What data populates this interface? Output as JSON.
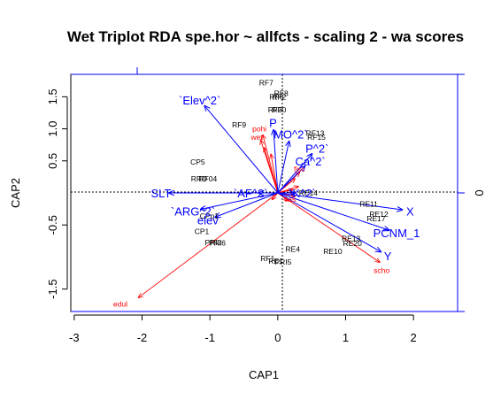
{
  "colors": {
    "sites": "#000000",
    "species": "#ff0000",
    "env": "#0000ff",
    "frame": "#000000",
    "secondary_axis": "#0000ff"
  },
  "chart_data": {
    "type": "scatter",
    "title": "Wet Triplot RDA spe.hor ~ allfcts - scaling 2 - wa scores",
    "xlabel": "CAP1",
    "ylabel": "CAP2",
    "xlim": [
      -3.05,
      2.65
    ],
    "ylim": [
      -1.85,
      1.85
    ],
    "x_ticks": [
      -3,
      -2,
      -1,
      0,
      1,
      2
    ],
    "y_ticks": [
      -1.5,
      -0.5,
      0.5,
      1.0,
      1.5
    ],
    "y_tick_labels": [
      "-1.5",
      "-0.5",
      "0.5",
      "1.0",
      "1.5"
    ],
    "right_axis_label": "0",
    "origin_lines": true,
    "sites": [
      {
        "label": "RF7",
        "x": -0.17,
        "y": 1.72
      },
      {
        "label": "RF8",
        "x": 0.05,
        "y": 1.55
      },
      {
        "label": "RF2",
        "x": 0.02,
        "y": 1.5
      },
      {
        "label": "RF6",
        "x": -0.02,
        "y": 1.5
      },
      {
        "label": "RF3",
        "x": -0.04,
        "y": 1.3
      },
      {
        "label": "RF0",
        "x": 0.02,
        "y": 1.3
      },
      {
        "label": "RF9",
        "x": -0.57,
        "y": 1.06
      },
      {
        "label": "RF13",
        "x": 0.55,
        "y": 0.93
      },
      {
        "label": "RF15",
        "x": 0.57,
        "y": 0.87
      },
      {
        "label": "CP5",
        "x": -1.18,
        "y": 0.48
      },
      {
        "label": "RF04",
        "x": -1.03,
        "y": 0.22
      },
      {
        "label": "RRD",
        "x": -1.16,
        "y": 0.22
      },
      {
        "label": "RE14",
        "x": 0.45,
        "y": 0.0
      },
      {
        "label": "RE11",
        "x": 1.34,
        "y": -0.17
      },
      {
        "label": "RE12",
        "x": 1.49,
        "y": -0.33
      },
      {
        "label": "RE17",
        "x": 1.45,
        "y": -0.4
      },
      {
        "label": "RE13",
        "x": 1.08,
        "y": -0.71
      },
      {
        "label": "RE20",
        "x": 1.1,
        "y": -0.79
      },
      {
        "label": "RE10",
        "x": 0.81,
        "y": -0.91
      },
      {
        "label": "RE4",
        "x": 0.22,
        "y": -0.88
      },
      {
        "label": "PRI5",
        "x": 0.08,
        "y": -1.08
      },
      {
        "label": "RF1",
        "x": -0.15,
        "y": -1.02
      },
      {
        "label": "RE1",
        "x": -0.03,
        "y": -1.06
      },
      {
        "label": "PRI2",
        "x": -0.95,
        "y": -0.77
      },
      {
        "label": "PRI6",
        "x": -0.89,
        "y": -0.78
      },
      {
        "label": "CPp1",
        "x": -1.01,
        "y": -0.36
      },
      {
        "label": "CP1",
        "x": -1.12,
        "y": -0.6
      }
    ],
    "species": [
      {
        "label": "pohi",
        "x": -0.27,
        "y": 1.0
      },
      {
        "label": "wet",
        "x": -0.31,
        "y": 0.87
      },
      {
        "label": "fisc",
        "x": 0.32,
        "y": 0.37
      },
      {
        "label": "vas",
        "x": 0.18,
        "y": -0.1
      },
      {
        "label": "scho",
        "x": 1.53,
        "y": -1.21
      },
      {
        "label": "edul",
        "x": -2.32,
        "y": -1.73
      }
    ],
    "species_arrow_tips": [
      [
        -0.22,
        0.9
      ],
      [
        -0.25,
        0.82
      ],
      [
        -0.2,
        0.7
      ],
      [
        -0.1,
        0.6
      ],
      [
        0.32,
        0.32
      ],
      [
        0.25,
        0.22
      ],
      [
        0.3,
        0.1
      ],
      [
        0.22,
        0.05
      ],
      [
        0.25,
        -0.05
      ],
      [
        0.15,
        -0.12
      ],
      [
        -0.08,
        -0.1
      ],
      [
        1.5,
        -1.08
      ],
      [
        -2.05,
        -1.63
      ]
    ],
    "env": [
      {
        "label": "`Elev^2`",
        "x": -1.15,
        "y": 1.45
      },
      {
        "label": "P",
        "x": -0.07,
        "y": 1.1
      },
      {
        "label": "MO^2`",
        "x": 0.19,
        "y": 0.92
      },
      {
        "label": "P^2`",
        "x": 0.58,
        "y": 0.7
      },
      {
        "label": "Ca^2`",
        "x": 0.48,
        "y": 0.5
      },
      {
        "label": "SLT",
        "x": -1.72,
        "y": 0.0
      },
      {
        "label": "`AF^2`",
        "x": -0.4,
        "y": 0.0
      },
      {
        "label": "`K^2`",
        "x": 0.36,
        "y": 0.0
      },
      {
        "label": "`ARG^2`",
        "x": -1.25,
        "y": -0.28
      },
      {
        "label": "elev",
        "x": -1.03,
        "y": -0.42
      },
      {
        "label": "X",
        "x": 1.95,
        "y": -0.28
      },
      {
        "label": "PCNM_1",
        "x": 1.75,
        "y": -0.62
      },
      {
        "label": "Y",
        "x": 1.62,
        "y": -0.98
      }
    ]
  }
}
